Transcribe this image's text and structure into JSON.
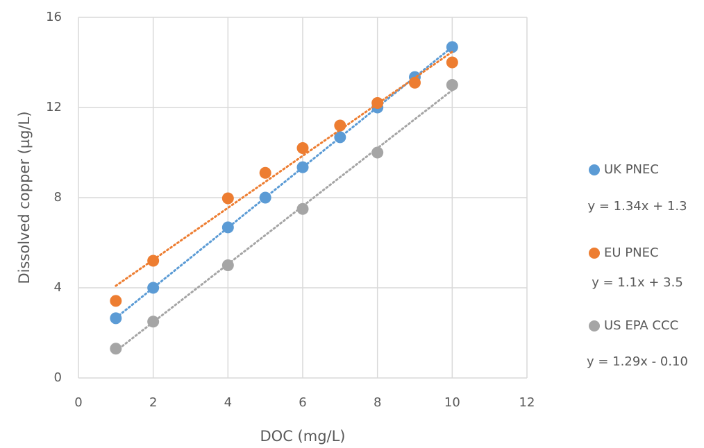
{
  "chart_data": {
    "type": "scatter",
    "x_label": "DOC (mg/L)",
    "y_label": "Dissolved copper  (µg/L)",
    "xlim": [
      0,
      12
    ],
    "xticks": [
      0,
      2,
      4,
      6,
      8,
      10,
      12
    ],
    "ylim": [
      0,
      16
    ],
    "yticks": [
      0,
      4,
      8,
      12,
      16
    ],
    "grid": true,
    "legend": "right",
    "trendline": true,
    "series": [
      {
        "name": "UK PNEC",
        "color": "#5b9bd5",
        "trendline_label": "y = 1.34x + 1.3",
        "x": [
          1,
          2,
          4,
          5,
          6,
          7,
          8,
          9,
          10
        ],
        "values": [
          2.65,
          4.0,
          6.68,
          8.0,
          9.35,
          10.68,
          12.0,
          13.35,
          14.68
        ]
      },
      {
        "name": "EU PNEC",
        "color": "#ed7d31",
        "trendline_label": "y = 1.1x + 3.5",
        "x": [
          1,
          2,
          4,
          5,
          6,
          7,
          8,
          9,
          10
        ],
        "values": [
          3.42,
          5.2,
          7.97,
          9.1,
          10.2,
          11.2,
          12.2,
          13.1,
          14.0
        ]
      },
      {
        "name": "US EPA CCC",
        "color": "#a5a5a5",
        "trendline_label": "y = 1.29x - 0.10",
        "x": [
          1,
          2,
          4,
          6,
          8,
          10
        ],
        "values": [
          1.3,
          2.5,
          5.0,
          7.5,
          10.0,
          13.0
        ]
      }
    ]
  }
}
